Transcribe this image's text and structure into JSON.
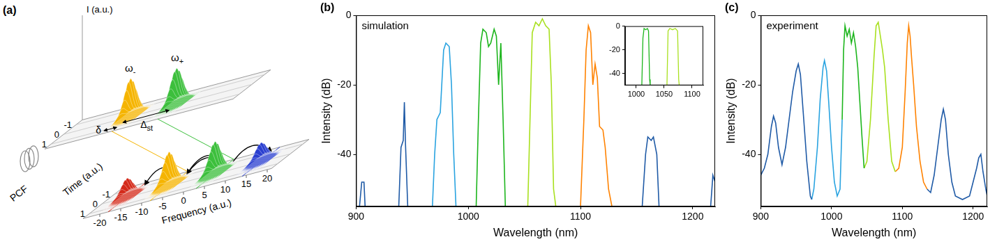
{
  "panel_a": {
    "panel_label": "(a)",
    "intensity_axis": "I (a.u.)",
    "fiber_label": "PCF",
    "time_axis": {
      "title": "Time (a.u.)",
      "ticks": [
        -1,
        0,
        1
      ]
    },
    "frequency_axis": {
      "title": "Frequency (a.u.)",
      "ticks": [
        -20,
        -15,
        -10,
        -5,
        0,
        5,
        10,
        15,
        20
      ]
    },
    "input_pulses": [
      {
        "label": {
          "symbol": "ω",
          "subscript": "-"
        },
        "frequency": -8,
        "amplitude": 1,
        "color": "#f5b400"
      },
      {
        "label": {
          "symbol": "ω",
          "subscript": "+"
        },
        "frequency": 3,
        "amplitude": 0.95,
        "color": "#3cbf3c"
      }
    ],
    "output_pulses": [
      {
        "frequency": -18,
        "amplitude": 0.5,
        "color": "#d42a1a"
      },
      {
        "frequency": -8,
        "amplitude": 0.9,
        "color": "#f5b400"
      },
      {
        "frequency": 3,
        "amplitude": 0.85,
        "color": "#3cbf3c"
      },
      {
        "frequency": 14,
        "amplitude": 0.5,
        "color": "#2a3fd0"
      }
    ],
    "stokes_shift_label": {
      "symbol": "Δ",
      "subscript": "st"
    },
    "detuning_label": "δ"
  },
  "chart_data": [
    {
      "type": "line",
      "panel_label": "(b)",
      "annotation": "simulation",
      "x_label": "Wavelength (nm)",
      "y_label": "Intensity (dB)",
      "xlim": [
        900,
        1220
      ],
      "xticks": [
        900,
        1000,
        1100,
        1200
      ],
      "ylim": [
        -55,
        0
      ],
      "yticks": [
        -40,
        -20,
        0
      ],
      "grid": false,
      "series": [
        {
          "color": "#1f5aa6",
          "x": [
            903,
            905,
            907,
            908,
            910,
            938,
            940,
            942,
            943,
            944,
            946,
            950,
            1155,
            1158,
            1160,
            1163,
            1165,
            1168,
            1170,
            1180,
            1216,
            1218,
            1220
          ],
          "values": [
            -55,
            -48,
            -48,
            -55,
            null,
            -55,
            -38,
            -36,
            -25,
            -37,
            -55,
            null,
            -55,
            -40,
            -35,
            -36,
            -35,
            -40,
            -55,
            null,
            -55,
            -46,
            -48
          ]
        },
        {
          "color": "#29a3e0",
          "x": [
            968,
            970,
            972,
            975,
            978,
            980,
            983,
            985,
            987,
            989
          ],
          "values": [
            -55,
            -40,
            -30,
            -28,
            -10,
            -8,
            -9,
            -20,
            -40,
            -55
          ]
        },
        {
          "color": "#1cb51c",
          "x": [
            1007,
            1009,
            1011,
            1013,
            1016,
            1018,
            1020,
            1023,
            1025,
            1027,
            1029,
            1031,
            1033
          ],
          "values": [
            -55,
            -30,
            -8,
            -4,
            -5,
            -9,
            -8,
            -4,
            -6,
            -20,
            -8,
            -30,
            -55
          ]
        },
        {
          "color": "#a8e01e",
          "x": [
            1053,
            1055,
            1057,
            1060,
            1063,
            1066,
            1069,
            1072,
            1074,
            1076,
            1078
          ],
          "values": [
            -55,
            -30,
            -5,
            -2,
            -3,
            -1,
            -3,
            -4,
            -20,
            -50,
            -55
          ]
        },
        {
          "color": "#ff8200",
          "x": [
            1100,
            1103,
            1105,
            1107,
            1109,
            1111,
            1113,
            1115,
            1117,
            1120,
            1122,
            1125,
            1128
          ],
          "values": [
            -55,
            -30,
            -10,
            -3,
            -5,
            -20,
            -14,
            -18,
            -32,
            -33,
            -38,
            -50,
            -55
          ]
        }
      ],
      "inset": {
        "type": "line",
        "xlim": [
          980,
          1120
        ],
        "xticks": [
          1000,
          1050,
          1100
        ],
        "ylim": [
          -50,
          0
        ],
        "yticks": [
          -40,
          -20,
          0
        ],
        "grid": false,
        "series": [
          {
            "color": "#1cb51c",
            "x": [
              1010,
              1012,
              1014,
              1017,
              1020,
              1022,
              1024,
              1025
            ],
            "values": [
              -50,
              -10,
              -2,
              -3,
              -2,
              -4,
              -45,
              -50
            ]
          },
          {
            "color": "#a8e01e",
            "x": [
              1055,
              1057,
              1060,
              1065,
              1070,
              1074,
              1076,
              1077
            ],
            "values": [
              -50,
              -4,
              -2,
              -3,
              -2,
              -4,
              -45,
              -50
            ]
          }
        ]
      }
    },
    {
      "type": "line",
      "panel_label": "(c)",
      "annotation": "experiment",
      "x_label": "Wavelength (nm)",
      "y_label": "Intensity (dB)",
      "xlim": [
        900,
        1220
      ],
      "xticks": [
        900,
        1000,
        1100,
        1200
      ],
      "ylim": [
        -55,
        0
      ],
      "yticks": [
        -40,
        -20,
        0
      ],
      "grid": false,
      "series": [
        {
          "color": "#1f5aa6",
          "x": [
            900,
            905,
            910,
            915,
            918,
            921,
            925,
            930,
            935,
            940,
            945,
            950,
            953,
            956,
            960,
            965,
            970,
            972
          ],
          "values": [
            -46,
            -44,
            -40,
            -32,
            -29,
            -31,
            -38,
            -43,
            -38,
            -30,
            -22,
            -16,
            -14,
            -17,
            -28,
            -42,
            -52,
            -53
          ]
        },
        {
          "color": "#29a3e0",
          "x": [
            972,
            975,
            980,
            984,
            988,
            990,
            993,
            996,
            1000,
            1004,
            1008,
            1012,
            1015
          ],
          "values": [
            -53,
            -50,
            -38,
            -24,
            -15,
            -13,
            -16,
            -25,
            -38,
            -48,
            -52,
            -50,
            -30
          ]
        },
        {
          "color": "#1cb51c",
          "x": [
            1015,
            1017,
            1019,
            1022,
            1025,
            1028,
            1031,
            1034,
            1037,
            1040,
            1043,
            1046
          ],
          "values": [
            -30,
            -10,
            -3,
            -6,
            -4,
            -8,
            -5,
            -9,
            -15,
            -25,
            -35,
            -44
          ]
        },
        {
          "color": "#a8e01e",
          "x": [
            1046,
            1050,
            1055,
            1060,
            1063,
            1066,
            1069,
            1072,
            1075,
            1080,
            1085,
            1090
          ],
          "values": [
            -44,
            -42,
            -30,
            -12,
            -3,
            -2,
            -6,
            -10,
            -15,
            -30,
            -42,
            -45
          ]
        },
        {
          "color": "#ff8200",
          "x": [
            1090,
            1095,
            1100,
            1104,
            1107,
            1109,
            1111,
            1113,
            1116,
            1120,
            1125,
            1130,
            1135
          ],
          "values": [
            -45,
            -44,
            -38,
            -22,
            -8,
            -3,
            -6,
            -12,
            -20,
            -32,
            -42,
            -48,
            -50
          ]
        },
        {
          "color": "#1f5aa6",
          "x": [
            1135,
            1140,
            1145,
            1150,
            1155,
            1158,
            1161,
            1165,
            1170,
            1175,
            1185,
            1195,
            1200,
            1205,
            1208,
            1211,
            1214,
            1218,
            1220
          ],
          "values": [
            -50,
            -51,
            -46,
            -38,
            -30,
            -27,
            -30,
            -40,
            -48,
            -52,
            -53,
            -52,
            -48,
            -44,
            -41,
            -40,
            -45,
            -50,
            -52
          ]
        }
      ]
    }
  ]
}
